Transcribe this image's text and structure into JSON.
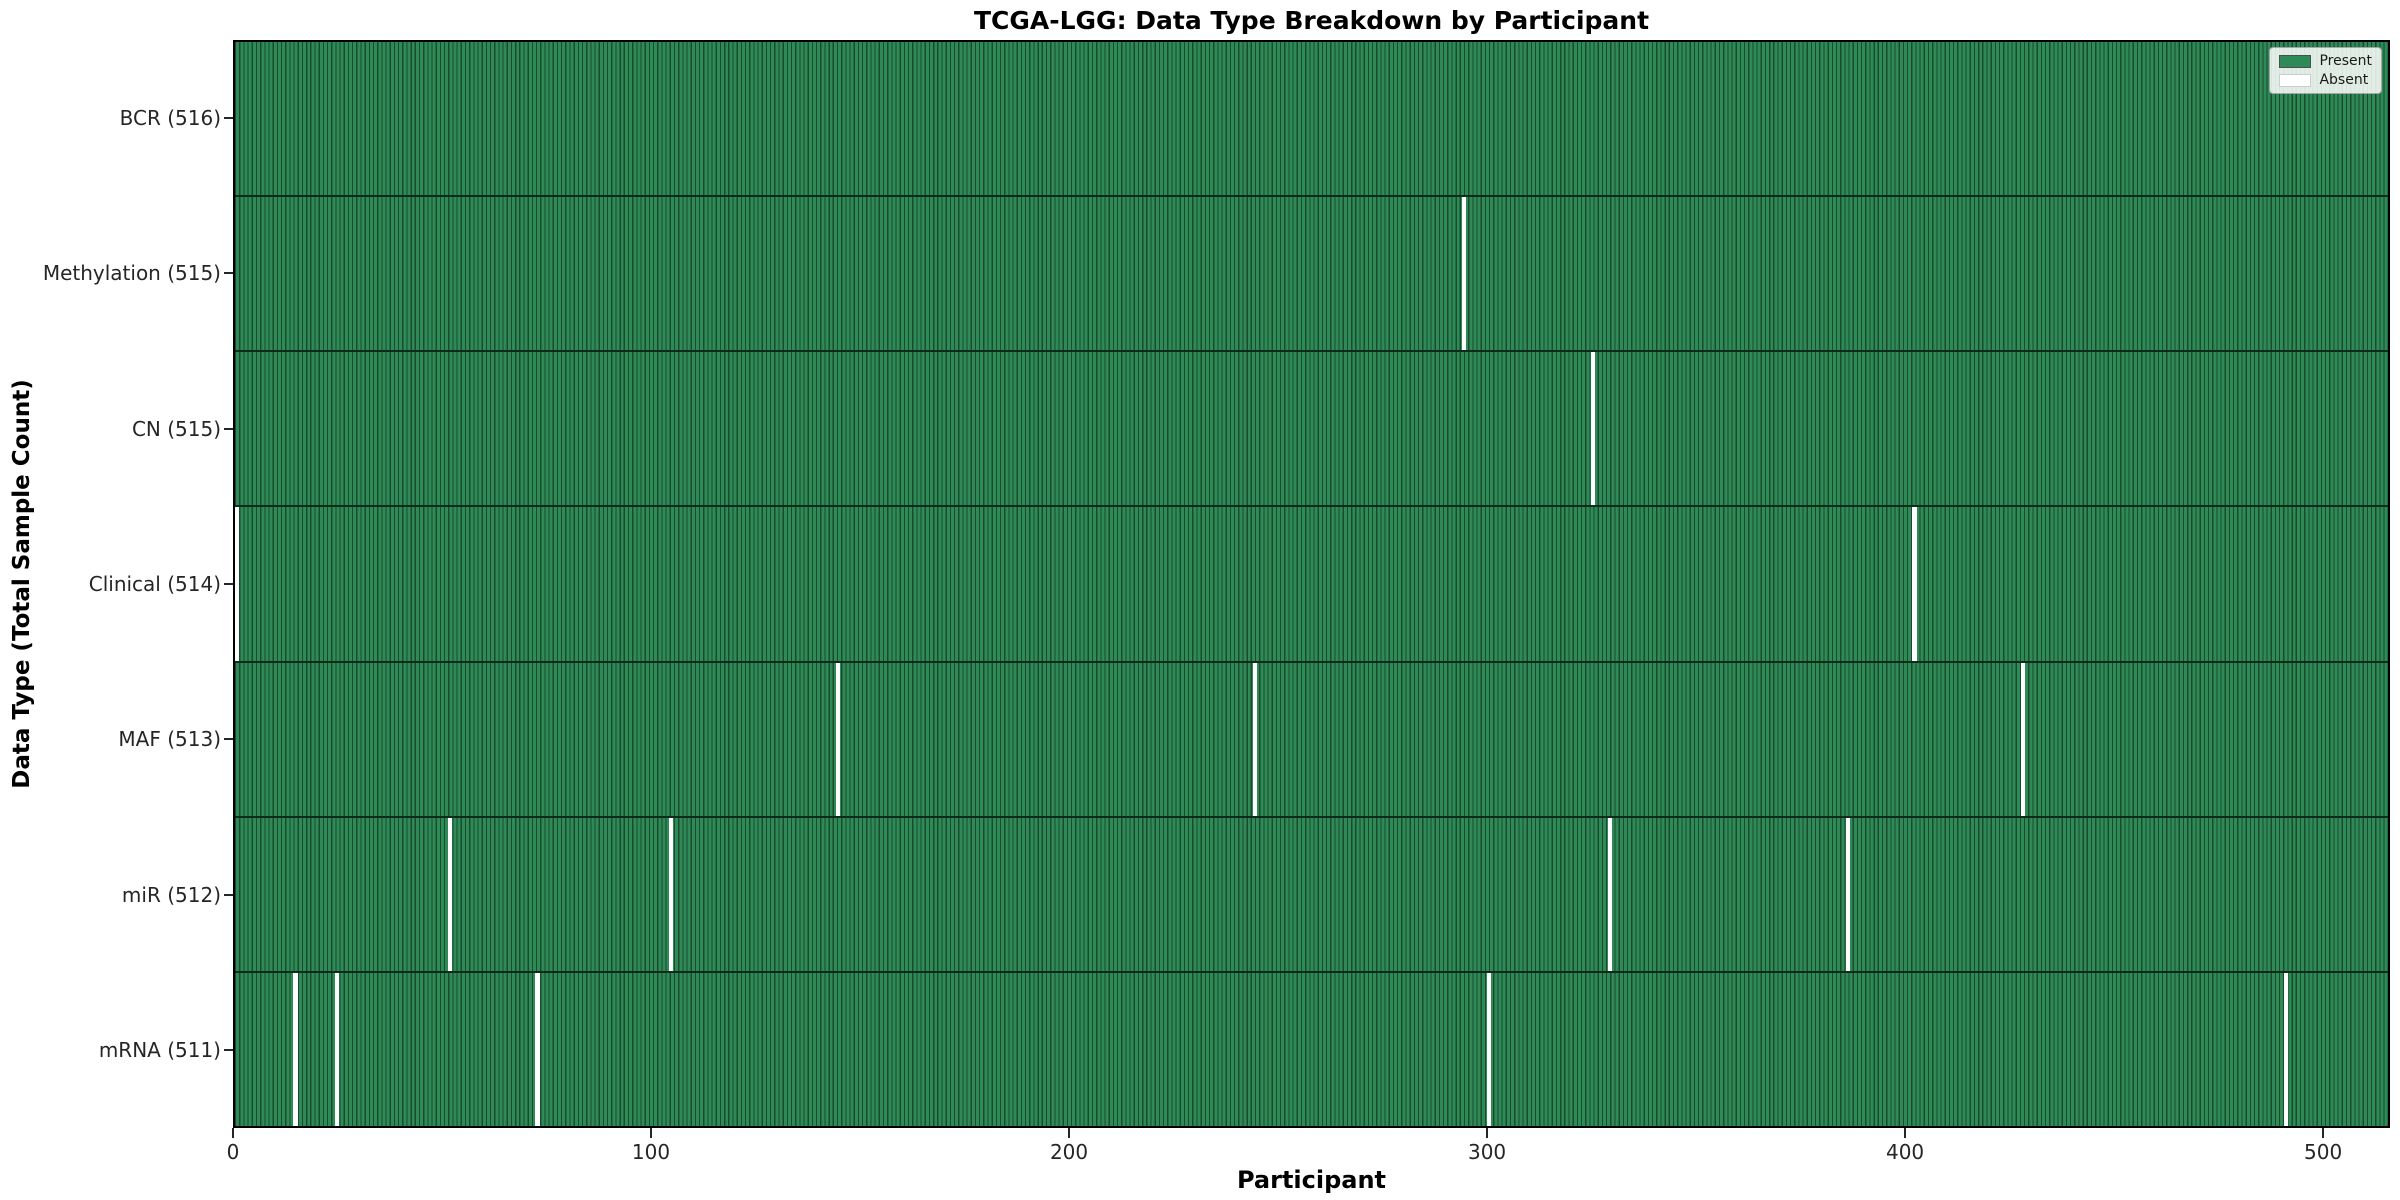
{
  "chart_data": {
    "type": "heatmap",
    "title": "TCGA-LGG: Data Type Breakdown by Participant",
    "xlabel": "Participant",
    "ylabel": "Data Type (Total Sample Count)",
    "n_participants": 516,
    "x_ticks": [
      0,
      100,
      200,
      300,
      400,
      500
    ],
    "rows": [
      {
        "data_type": "BCR",
        "label": "BCR (516)",
        "total_samples": 516,
        "absent_participants": []
      },
      {
        "data_type": "Methylation",
        "label": "Methylation (515)",
        "total_samples": 515,
        "absent_participants": [
          294
        ]
      },
      {
        "data_type": "CN",
        "label": "CN (515)",
        "total_samples": 515,
        "absent_participants": [
          325
        ]
      },
      {
        "data_type": "Clinical",
        "label": "Clinical (514)",
        "total_samples": 514,
        "absent_participants": [
          0,
          402
        ]
      },
      {
        "data_type": "MAF",
        "label": "MAF (513)",
        "total_samples": 513,
        "absent_participants": [
          144,
          244,
          428
        ]
      },
      {
        "data_type": "miR",
        "label": "miR (512)",
        "total_samples": 512,
        "absent_participants": [
          51,
          104,
          329,
          386
        ]
      },
      {
        "data_type": "mRNA",
        "label": "mRNA (511)",
        "total_samples": 511,
        "absent_participants": [
          14,
          24,
          72,
          300,
          491
        ]
      }
    ],
    "legend": {
      "position": "upper right",
      "entries": [
        {
          "label": "Present",
          "color": "#2e8b57"
        },
        {
          "label": "Absent",
          "color": "#ffffff"
        }
      ]
    },
    "colors": {
      "present": "#2e8b57",
      "absent": "#ffffff",
      "cell_edge": "#1b4a2d"
    }
  }
}
